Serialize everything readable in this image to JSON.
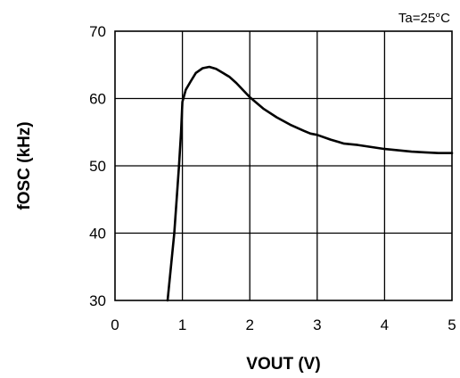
{
  "chart_data": {
    "type": "line",
    "annotation": "Ta=25°C",
    "xlabel": "VOUT (V)",
    "ylabel": "fOSC (kHz)",
    "xlim": [
      0,
      5
    ],
    "ylim": [
      30,
      70
    ],
    "xticks": [
      "0",
      "1",
      "2",
      "3",
      "4",
      "5"
    ],
    "yticks": [
      "30",
      "40",
      "50",
      "60",
      "70"
    ],
    "grid": true,
    "series": [
      {
        "x": [
          0.78,
          0.88,
          0.95,
          0.98,
          1.0,
          1.05,
          1.12,
          1.2,
          1.3,
          1.4,
          1.5,
          1.6,
          1.7,
          1.8,
          2.0,
          2.2,
          2.4,
          2.6,
          2.8,
          2.9,
          3.0,
          3.2,
          3.4,
          3.6,
          3.8,
          4.0,
          4.2,
          4.4,
          4.6,
          4.8,
          5.0
        ],
        "y": [
          30.0,
          40.0,
          50.0,
          55.0,
          59.5,
          61.3,
          62.5,
          63.8,
          64.5,
          64.7,
          64.4,
          63.8,
          63.2,
          62.3,
          60.2,
          58.5,
          57.2,
          56.1,
          55.2,
          54.8,
          54.6,
          53.9,
          53.3,
          53.1,
          52.8,
          52.5,
          52.3,
          52.1,
          52.0,
          51.9,
          51.9
        ]
      }
    ]
  }
}
